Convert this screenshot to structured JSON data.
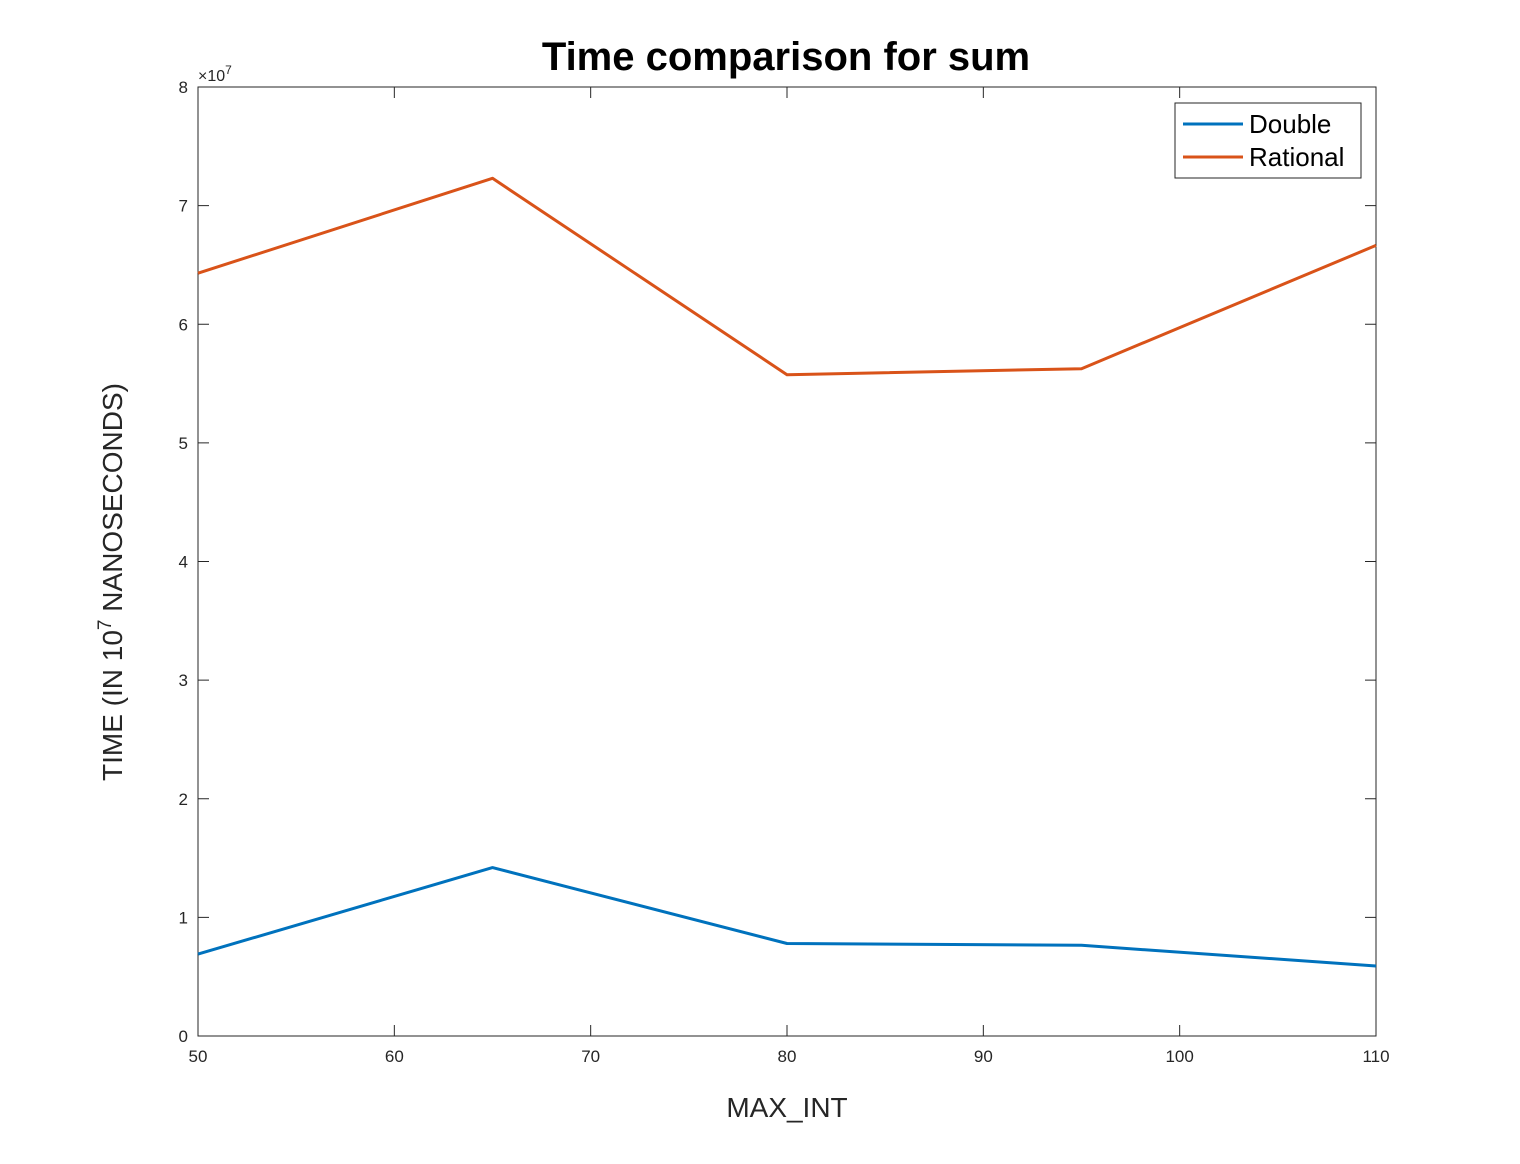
{
  "chart_data": {
    "type": "line",
    "title": "Time comparison for sum",
    "xlabel": "MAX_INT",
    "ylabel": {
      "prefix": "TIME (IN 10",
      "superscript": "7",
      "suffix": " NANOSECONDS)"
    },
    "xlim": [
      50,
      110
    ],
    "ylim": [
      0,
      80000000
    ],
    "xticks": [
      "50",
      "60",
      "70",
      "80",
      "90",
      "100",
      "110"
    ],
    "xtick_values": [
      50,
      60,
      70,
      80,
      90,
      100,
      110
    ],
    "yticks": [
      "0",
      "1",
      "2",
      "3",
      "4",
      "5",
      "6",
      "7",
      "8"
    ],
    "ytick_values": [
      0,
      10000000,
      20000000,
      30000000,
      40000000,
      50000000,
      60000000,
      70000000,
      80000000
    ],
    "y_exponent": {
      "base": "×10",
      "power": "7"
    },
    "x": [
      50,
      65,
      80,
      95,
      110
    ],
    "series": [
      {
        "name": "Double",
        "color": "#0072BD",
        "values": [
          6900000,
          14200000,
          7800000,
          7650000,
          5900000
        ]
      },
      {
        "name": "Rational",
        "color": "#D95319",
        "values": [
          64300000,
          72300000,
          55750000,
          56250000,
          66650000
        ]
      }
    ],
    "grid": false,
    "legend": "top-right"
  }
}
